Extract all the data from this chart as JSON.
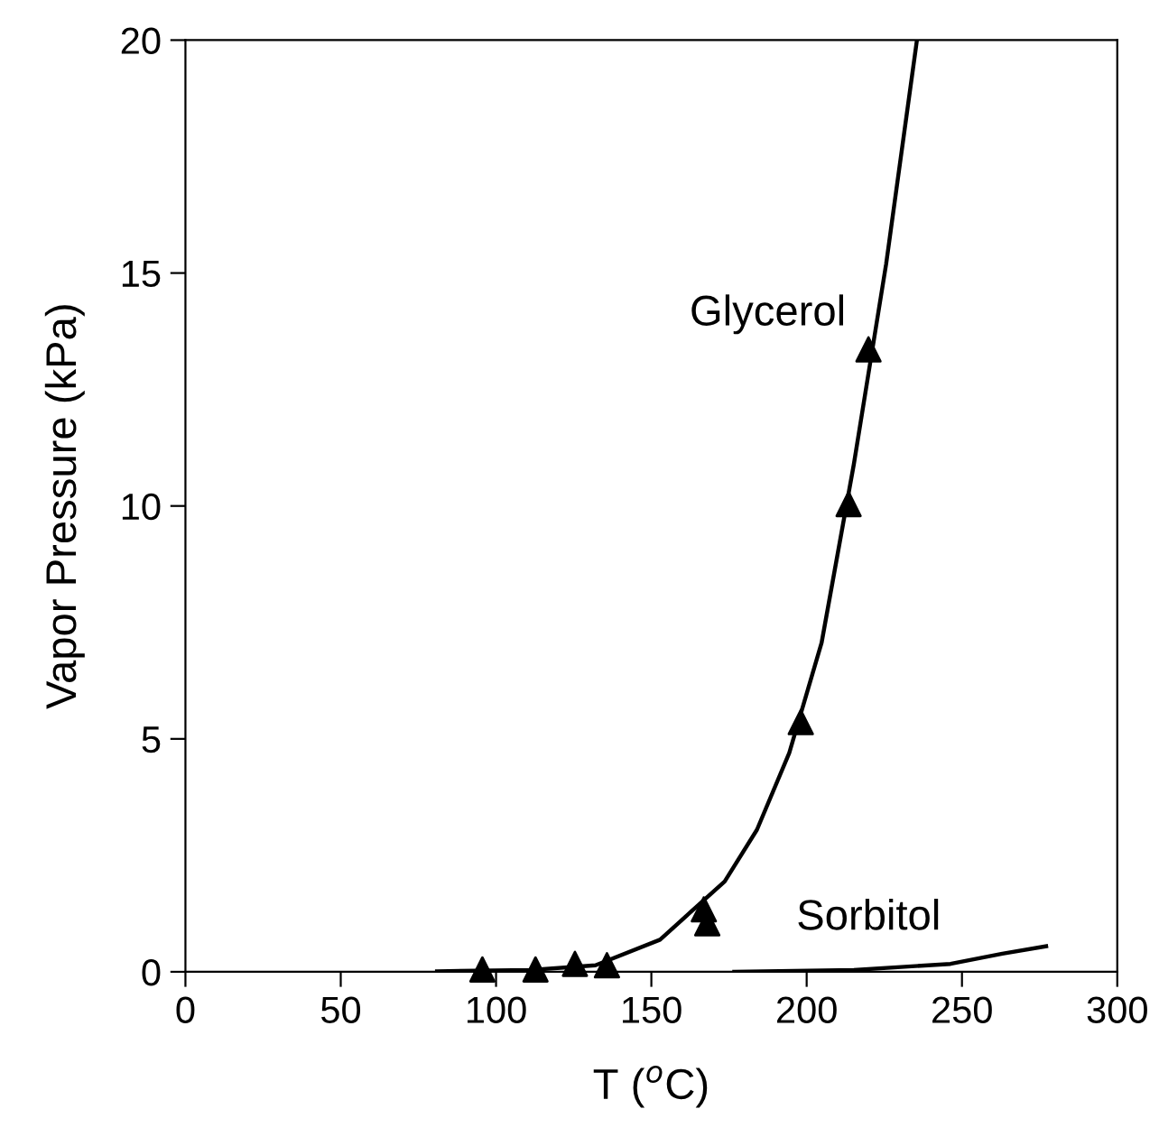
{
  "chart_data": {
    "type": "line",
    "xlabel": "T ($^{o}$C)",
    "ylabel": "Vapor Pressure (kPa)",
    "xlim": [
      0,
      300
    ],
    "xticks": [
      0,
      50,
      100,
      150,
      200,
      250,
      300
    ],
    "ylim": [
      0,
      20
    ],
    "yticks": [
      0,
      5,
      10,
      15,
      20
    ],
    "grid": false,
    "legend": false,
    "series": [
      {
        "type": "scatter",
        "name": "Glycerol",
        "marker": "triangle",
        "color": "#000000",
        "x": [
          95.6,
          112.7,
          125.4,
          135.7,
          166.9,
          168.0,
          198.1,
          213.5,
          219.9
        ],
        "values": [
          0.05,
          0.05,
          0.17,
          0.14,
          1.34,
          1.04,
          5.36,
          10.04,
          13.36
        ]
      },
      {
        "line_style": "solid",
        "color": "#000000",
        "x": [
          81,
          111.2,
          132,
          152.8,
          173.6,
          184,
          194.4,
          204.8,
          215.2,
          225.6,
          235.5
        ],
        "values": [
          0.01,
          0.04,
          0.14,
          0.69,
          1.94,
          3.05,
          4.7,
          7.06,
          10.9,
          15.2,
          20
        ]
      },
      {
        "name": "Sorbitol",
        "line_style": "solid",
        "color": "#000000",
        "x": [
          176.7,
          215.2,
          246.3,
          263,
          277.1
        ],
        "values": [
          0,
          0.04,
          0.17,
          0.39,
          0.55
        ]
      }
    ]
  }
}
